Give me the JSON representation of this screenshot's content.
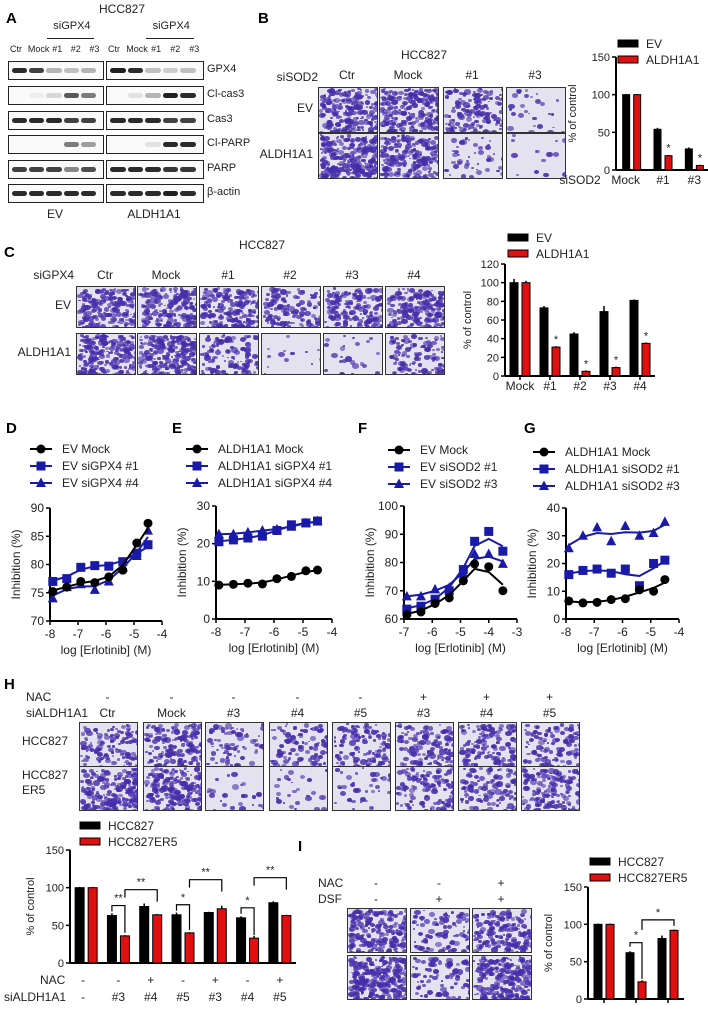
{
  "panels": {
    "A": {
      "label": "A",
      "title": "HCC827",
      "si_label": "siGPX4",
      "lanes": [
        "Ctr",
        "Mock",
        "#1",
        "#2",
        "#3"
      ],
      "groups": [
        "EV",
        "ALDH1A1"
      ],
      "rows": [
        "GPX4",
        "Cl-cas3",
        "Cas3",
        "Cl-PARP",
        "PARP",
        "β-actin"
      ],
      "band_intensity": {
        "EV": {
          "GPX4": [
            0.9,
            0.8,
            0.3,
            0.25,
            0.3
          ],
          "Cl-cas3": [
            0.0,
            0.05,
            0.15,
            0.7,
            0.55
          ],
          "Cas3": [
            0.9,
            0.9,
            0.9,
            0.8,
            0.8
          ],
          "Cl-PARP": [
            0.0,
            0.0,
            0.0,
            0.55,
            0.4
          ],
          "PARP": [
            0.8,
            0.8,
            0.8,
            0.5,
            0.75
          ],
          "β-actin": [
            0.9,
            0.9,
            0.9,
            0.9,
            0.9
          ]
        },
        "ALDH1A1": {
          "GPX4": [
            0.95,
            0.9,
            0.25,
            0.2,
            0.25
          ],
          "Cl-cas3": [
            0.0,
            0.1,
            0.3,
            0.95,
            0.9
          ],
          "Cas3": [
            0.9,
            0.9,
            0.9,
            0.8,
            0.8
          ],
          "Cl-PARP": [
            0.0,
            0.0,
            0.1,
            0.9,
            0.9
          ],
          "PARP": [
            0.9,
            0.9,
            0.9,
            0.85,
            0.85
          ],
          "β-actin": [
            0.9,
            0.9,
            0.9,
            0.95,
            0.9
          ]
        }
      }
    },
    "B": {
      "label": "B",
      "title": "HCC827",
      "si_label": "siSOD2",
      "columns": [
        "Ctr",
        "Mock",
        "#1",
        "#3"
      ],
      "rows": [
        "EV",
        "ALDH1A1"
      ],
      "well_density": [
        [
          0.75,
          0.8,
          0.5,
          0.1
        ],
        [
          0.85,
          0.7,
          0.15,
          0.05
        ]
      ]
    },
    "C": {
      "label": "C",
      "title": "HCC827",
      "si_label": "siGPX4",
      "columns": [
        "Ctr",
        "Mock",
        "#1",
        "#2",
        "#3",
        "#4"
      ],
      "rows": [
        "EV",
        "ALDH1A1"
      ],
      "well_density": [
        [
          0.75,
          0.7,
          0.7,
          0.45,
          0.65,
          0.75
        ],
        [
          0.85,
          0.85,
          0.45,
          0.05,
          0.1,
          0.45
        ]
      ]
    },
    "D": {
      "label": "D"
    },
    "E": {
      "label": "E"
    },
    "F": {
      "label": "F"
    },
    "G": {
      "label": "G"
    },
    "H": {
      "label": "H",
      "nac_label": "NAC",
      "si_label": "siALDH1A1",
      "nac": [
        "-",
        "-",
        "-",
        "-",
        "-",
        "+",
        "+",
        "+"
      ],
      "columns": [
        "Ctr",
        "Mock",
        "#3",
        "#4",
        "#5",
        "#3",
        "#4",
        "#5"
      ],
      "rows": [
        "HCC827",
        "HCC827\nER5"
      ],
      "row_line1": [
        "HCC827",
        "HCC827"
      ],
      "row_line2": [
        "",
        "ER5"
      ],
      "well_density": [
        [
          0.45,
          0.6,
          0.3,
          0.35,
          0.45,
          0.45,
          0.5,
          0.45
        ],
        [
          0.7,
          0.7,
          0.1,
          0.1,
          0.15,
          0.45,
          0.45,
          0.55
        ]
      ]
    },
    "I": {
      "label": "I",
      "nac_label": "NAC",
      "dsf_label": "DSF",
      "nac": [
        "-",
        "-",
        "+"
      ],
      "dsf": [
        "-",
        "+",
        "+"
      ],
      "well_density": [
        [
          0.8,
          0.35,
          0.6
        ],
        [
          0.95,
          0.3,
          0.85
        ]
      ]
    }
  },
  "chart_data": [
    {
      "id": "B",
      "type": "bar",
      "title": "",
      "xlabel": "siSOD2",
      "ylabel": "% of control",
      "ylim": [
        0,
        150
      ],
      "yticks": [
        0,
        50,
        100,
        150
      ],
      "categories": [
        "Mock",
        "#1",
        "#3"
      ],
      "series": [
        {
          "name": "EV",
          "color": "#000000",
          "values": [
            100,
            54,
            28
          ],
          "errors": [
            1,
            2,
            2
          ]
        },
        {
          "name": "ALDH1A1",
          "color": "#e01010",
          "values": [
            100,
            19,
            6
          ],
          "errors": [
            1,
            1,
            1
          ]
        }
      ],
      "annotations": [
        {
          "category": "#1",
          "series": "ALDH1A1",
          "text": "*"
        },
        {
          "category": "#3",
          "series": "ALDH1A1",
          "text": "*"
        }
      ],
      "legend": "top-right"
    },
    {
      "id": "C",
      "type": "bar",
      "title": "",
      "xlabel": "",
      "ylabel": "% of control",
      "ylim": [
        0,
        120
      ],
      "yticks": [
        0,
        20,
        40,
        60,
        80,
        100,
        120
      ],
      "categories": [
        "Mock",
        "#1",
        "#2",
        "#3",
        "#4"
      ],
      "series": [
        {
          "name": "EV",
          "color": "#000000",
          "values": [
            100,
            73,
            45,
            69,
            81
          ],
          "errors": [
            4,
            2,
            2,
            6,
            1
          ]
        },
        {
          "name": "ALDH1A1",
          "color": "#e01010",
          "values": [
            100,
            31,
            5,
            9,
            35
          ],
          "errors": [
            2,
            1,
            1,
            1,
            1
          ]
        }
      ],
      "annotations": [
        {
          "category": "#1",
          "series": "ALDH1A1",
          "text": "*"
        },
        {
          "category": "#2",
          "series": "ALDH1A1",
          "text": "*"
        },
        {
          "category": "#3",
          "series": "ALDH1A1",
          "text": "*"
        },
        {
          "category": "#4",
          "series": "ALDH1A1",
          "text": "*"
        }
      ],
      "legend": "top"
    },
    {
      "id": "D",
      "type": "line",
      "xlabel": "log [Erlotinib] (M)",
      "ylabel": "Inhibition (%)",
      "xlim": [
        -8,
        -4
      ],
      "ylim": [
        70,
        90
      ],
      "xticks": [
        -8,
        -7,
        -6,
        -5,
        -4
      ],
      "yticks": [
        70,
        75,
        80,
        85,
        90
      ],
      "x": [
        -7.9,
        -7.4,
        -6.9,
        -6.4,
        -5.9,
        -5.4,
        -4.9,
        -4.5
      ],
      "series": [
        {
          "name": "EV Mock",
          "marker": "circle",
          "color": "#000000",
          "values": [
            75.2,
            76.0,
            77.0,
            76.8,
            77.8,
            79.0,
            83.8,
            87.3
          ]
        },
        {
          "name": "EV siGPX4 #1",
          "marker": "square",
          "color": "#1a1aa8",
          "values": [
            77.0,
            77.5,
            79.5,
            79.8,
            79.7,
            80.5,
            82.0,
            83.5
          ]
        },
        {
          "name": "EV siGPX4 #4",
          "marker": "triangle",
          "color": "#1a1aa8",
          "values": [
            74.0,
            76.0,
            76.5,
            75.5,
            77.0,
            79.5,
            81.5,
            86.0
          ]
        }
      ],
      "legend": "top-left"
    },
    {
      "id": "E",
      "type": "line",
      "xlabel": "log [Erlotinib] (M)",
      "ylabel": "Inhibition (%)",
      "xlim": [
        -8,
        -4
      ],
      "ylim": [
        0,
        30
      ],
      "xticks": [
        -8,
        -7,
        -6,
        -5,
        -4
      ],
      "yticks": [
        0,
        10,
        20,
        30
      ],
      "x": [
        -7.9,
        -7.4,
        -6.9,
        -6.4,
        -5.9,
        -5.4,
        -4.9,
        -4.5
      ],
      "series": [
        {
          "name": "ALDH1A1 Mock",
          "marker": "circle",
          "color": "#000000",
          "values": [
            9.0,
            9.2,
            9.5,
            9.3,
            10.7,
            11.3,
            12.8,
            13.0
          ]
        },
        {
          "name": "ALDH1A1 siGPX4 #1",
          "marker": "square",
          "color": "#1a1aa8",
          "values": [
            20.5,
            21.0,
            21.5,
            22.0,
            23.5,
            25.0,
            25.5,
            26.0
          ]
        },
        {
          "name": "ALDH1A1 siGPX4 #4",
          "marker": "triangle",
          "color": "#1a1aa8",
          "values": [
            22.5,
            22.5,
            23.0,
            23.5,
            23.8,
            24.5,
            25.5,
            26.0
          ]
        }
      ],
      "legend": "top-left"
    },
    {
      "id": "F",
      "type": "line",
      "xlabel": "log [Erlotinib] (M)",
      "ylabel": "Inhibition (%)",
      "xlim": [
        -7,
        -3
      ],
      "ylim": [
        60,
        100
      ],
      "xticks": [
        -7,
        -6,
        -5,
        -4,
        -3
      ],
      "yticks": [
        60,
        70,
        80,
        90,
        100
      ],
      "x": [
        -6.9,
        -6.4,
        -5.9,
        -5.4,
        -4.9,
        -4.5,
        -4.0,
        -3.5
      ],
      "series": [
        {
          "name": "EV Mock",
          "marker": "circle",
          "color": "#000000",
          "values": [
            61.5,
            62.5,
            65.5,
            67.5,
            73.5,
            79.5,
            78.5,
            70.0
          ]
        },
        {
          "name": "EV siSOD2 #1",
          "marker": "square",
          "color": "#1a1aa8",
          "values": [
            63.5,
            64.5,
            67.0,
            70.0,
            77.5,
            87.5,
            91.0,
            84.0
          ]
        },
        {
          "name": "EV siSOD2 #3",
          "marker": "triangle",
          "color": "#1a1aa8",
          "values": [
            68.0,
            68.0,
            70.5,
            71.0,
            76.0,
            83.0,
            83.0,
            79.5
          ]
        }
      ],
      "legend": "top-left"
    },
    {
      "id": "G",
      "type": "line",
      "xlabel": "log [Erlotinib] (M)",
      "ylabel": "Inhibition (%)",
      "xlim": [
        -8,
        -4
      ],
      "ylim": [
        0,
        40
      ],
      "xticks": [
        -8,
        -7,
        -6,
        -5,
        -4
      ],
      "yticks": [
        0,
        10,
        20,
        30,
        40
      ],
      "x": [
        -7.9,
        -7.4,
        -6.9,
        -6.4,
        -5.9,
        -5.4,
        -4.9,
        -4.5
      ],
      "series": [
        {
          "name": "ALDH1A1 Mock",
          "marker": "circle",
          "color": "#000000",
          "values": [
            6.5,
            5.8,
            6.0,
            7.0,
            7.3,
            10.5,
            10.0,
            14.2
          ]
        },
        {
          "name": "ALDH1A1 siSOD2 #1",
          "marker": "square",
          "color": "#1a1aa8",
          "values": [
            16.0,
            17.5,
            18.0,
            16.5,
            18.0,
            12.0,
            20.0,
            21.2
          ]
        },
        {
          "name": "ALDH1A1 siSOD2 #3",
          "marker": "triangle",
          "color": "#1a1aa8",
          "values": [
            25.5,
            30.0,
            33.0,
            28.0,
            33.5,
            30.0,
            31.0,
            35.0
          ]
        }
      ],
      "legend": "top-left"
    },
    {
      "id": "H",
      "type": "bar",
      "xlabel": "",
      "ylabel": "% of control",
      "ylim": [
        0,
        150
      ],
      "yticks": [
        0,
        50,
        100,
        150
      ],
      "row_labels": [
        "NAC",
        "siALDH1A1"
      ],
      "categories": [
        "-/-",
        "-/#3",
        "+/#4",
        "-/#5",
        "+/#3",
        "-/#4",
        "+/#5"
      ],
      "nac": [
        "-",
        "-",
        "+",
        "-",
        "+",
        "-",
        "+"
      ],
      "si": [
        "-",
        "#3",
        "#4",
        "#5",
        "#3",
        "#4",
        "#5"
      ],
      "series": [
        {
          "name": "HCC827",
          "color": "#000000",
          "values": [
            100,
            63,
            75,
            64,
            67,
            60,
            80
          ],
          "errors": [
            1,
            3,
            4,
            3,
            1,
            2,
            2
          ]
        },
        {
          "name": "HCC827ER5",
          "color": "#e01010",
          "values": [
            100,
            36,
            64,
            40,
            72,
            33,
            63
          ],
          "errors": [
            1,
            1,
            1,
            1,
            4,
            3,
            1
          ]
        }
      ],
      "brackets": [
        {
          "from": 1,
          "to": 1,
          "text": "**"
        },
        {
          "from": 1,
          "to": 2,
          "text": "**"
        },
        {
          "from": 3,
          "to": 3,
          "text": "*"
        },
        {
          "from": 3,
          "to": 4,
          "text": "**"
        },
        {
          "from": 5,
          "to": 5,
          "text": "*"
        },
        {
          "from": 5,
          "to": 6,
          "text": "**"
        }
      ],
      "legend": "top-left"
    },
    {
      "id": "I",
      "type": "bar",
      "xlabel": "",
      "ylabel": "% of control",
      "ylim": [
        0,
        150
      ],
      "yticks": [
        0,
        50,
        100,
        150
      ],
      "categories": [
        "NAC-/DSF-",
        "NAC-/DSF+",
        "NAC+/DSF+"
      ],
      "series": [
        {
          "name": "HCC827",
          "color": "#000000",
          "values": [
            100,
            62,
            81
          ],
          "errors": [
            1,
            2,
            4
          ]
        },
        {
          "name": "HCC827ER5",
          "color": "#e01010",
          "values": [
            100,
            23,
            92
          ],
          "errors": [
            1,
            2,
            1
          ]
        }
      ],
      "brackets": [
        {
          "from": 1,
          "to": 1,
          "text": "*"
        },
        {
          "from": 1,
          "to": 2,
          "text": "*"
        }
      ],
      "legend": "top-right"
    }
  ]
}
